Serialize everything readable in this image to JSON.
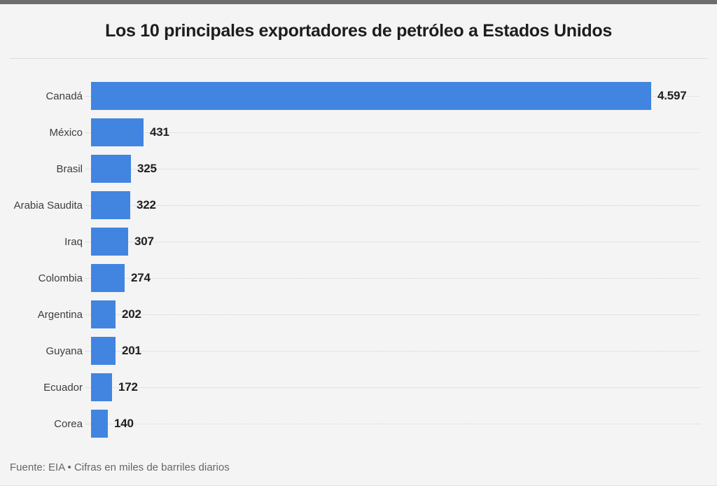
{
  "page": {
    "title": "Los 10 principales exportadores de petróleo a Estados Unidos",
    "footer": "Fuente: EIA • Cifras en miles de barriles diarios"
  },
  "colors": {
    "bar": "#4185e0",
    "top_accent": "#6d6d6d",
    "background": "#f4f4f4",
    "title_text": "#1d1d1d",
    "label_text": "#3d3d3d",
    "value_text": "#1f1f1f",
    "footer_text": "#666666",
    "gridline": "#d2d2d2"
  },
  "chart_data": {
    "type": "bar",
    "orientation": "horizontal",
    "title": "Los 10 principales exportadores de petróleo a Estados Unidos",
    "source": "Fuente: EIA",
    "note": "Cifras en miles de barriles diarios",
    "unit": "miles de barriles diarios",
    "categories": [
      "Canadá",
      "México",
      "Brasil",
      "Arabia Saudita",
      "Iraq",
      "Colombia",
      "Argentina",
      "Guyana",
      "Ecuador",
      "Corea"
    ],
    "values": [
      4597,
      431,
      325,
      322,
      307,
      274,
      202,
      201,
      172,
      140
    ],
    "value_labels": [
      "4.597",
      "431",
      "325",
      "322",
      "307",
      "274",
      "202",
      "201",
      "172",
      "140"
    ],
    "xlim": [
      0,
      4597
    ],
    "grid": "dotted-horizontal-row-guides",
    "legend": "none",
    "bar_color": "#4185e0"
  }
}
